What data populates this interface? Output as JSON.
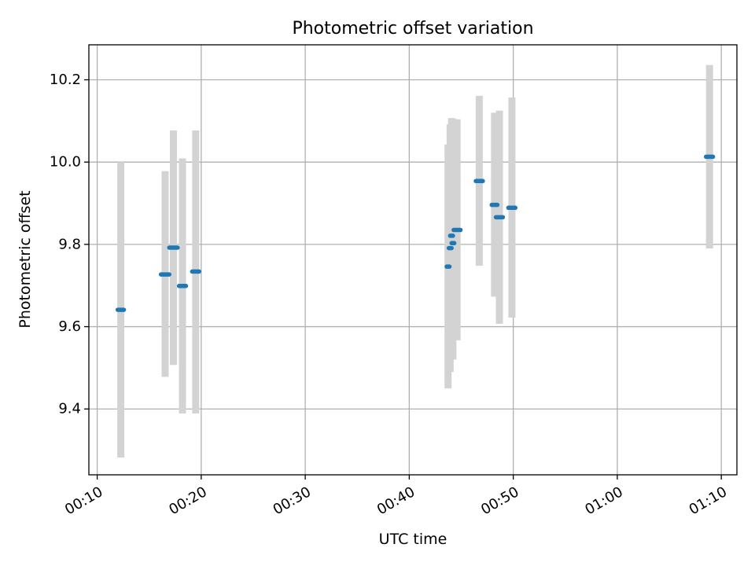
{
  "chart_data": {
    "type": "scatter",
    "title": "Photometric offset variation",
    "xlabel": "UTC time",
    "ylabel": "Photometric offset",
    "x_unit": "minutes",
    "xlim": [
      9.2,
      71.5
    ],
    "ylim": [
      9.24,
      10.285
    ],
    "x_ticks": [
      {
        "value": 10,
        "label": "00:10"
      },
      {
        "value": 20,
        "label": "00:20"
      },
      {
        "value": 30,
        "label": "00:30"
      },
      {
        "value": 40,
        "label": "00:40"
      },
      {
        "value": 50,
        "label": "00:50"
      },
      {
        "value": 60,
        "label": "01:00"
      },
      {
        "value": 70,
        "label": "01:10"
      }
    ],
    "y_ticks": [
      {
        "value": 9.4,
        "label": "9.4"
      },
      {
        "value": 9.6,
        "label": "9.6"
      },
      {
        "value": 9.8,
        "label": "9.8"
      },
      {
        "value": 10.0,
        "label": "10.0"
      },
      {
        "value": 10.2,
        "label": "10.2"
      }
    ],
    "grid": true,
    "colors": {
      "point": "#1f77b4",
      "errorbar": "#d3d3d3",
      "grid": "#b0b0b0"
    },
    "points": [
      {
        "t": 12.27,
        "y": 9.641,
        "err_low": 9.282,
        "err_high": 10.0,
        "t_start": 11.97,
        "t_end": 12.57
      },
      {
        "t": 16.53,
        "y": 9.727,
        "err_low": 9.478,
        "err_high": 9.978,
        "t_start": 16.13,
        "t_end": 16.93
      },
      {
        "t": 17.33,
        "y": 9.792,
        "err_low": 9.507,
        "err_high": 10.077,
        "t_start": 16.93,
        "t_end": 17.73
      },
      {
        "t": 18.2,
        "y": 9.699,
        "err_low": 9.389,
        "err_high": 10.009,
        "t_start": 17.87,
        "t_end": 18.53
      },
      {
        "t": 19.47,
        "y": 9.734,
        "err_low": 9.389,
        "err_high": 10.077,
        "t_start": 19.13,
        "t_end": 19.8
      },
      {
        "t": 43.73,
        "y": 9.746,
        "err_low": 9.45,
        "err_high": 10.043,
        "t_start": 43.6,
        "t_end": 43.87
      },
      {
        "t": 43.93,
        "y": 9.791,
        "err_low": 9.49,
        "err_high": 10.092,
        "t_start": 43.8,
        "t_end": 44.07
      },
      {
        "t": 44.07,
        "y": 9.821,
        "err_low": 9.52,
        "err_high": 10.107,
        "t_start": 43.93,
        "t_end": 44.2
      },
      {
        "t": 44.2,
        "y": 9.803,
        "err_low": 9.52,
        "err_high": 10.105,
        "t_start": 44.07,
        "t_end": 44.33
      },
      {
        "t": 44.6,
        "y": 9.835,
        "err_low": 9.567,
        "err_high": 10.104,
        "t_start": 44.27,
        "t_end": 44.93
      },
      {
        "t": 46.73,
        "y": 9.954,
        "err_low": 9.748,
        "err_high": 10.161,
        "t_start": 46.4,
        "t_end": 47.07
      },
      {
        "t": 48.2,
        "y": 9.896,
        "err_low": 9.673,
        "err_high": 10.12,
        "t_start": 47.93,
        "t_end": 48.47
      },
      {
        "t": 48.67,
        "y": 9.866,
        "err_low": 9.607,
        "err_high": 10.125,
        "t_start": 48.33,
        "t_end": 49.0
      },
      {
        "t": 49.87,
        "y": 9.889,
        "err_low": 9.622,
        "err_high": 10.157,
        "t_start": 49.53,
        "t_end": 50.2
      },
      {
        "t": 68.87,
        "y": 10.013,
        "err_low": 9.79,
        "err_high": 10.236,
        "t_start": 68.53,
        "t_end": 69.2
      }
    ]
  }
}
